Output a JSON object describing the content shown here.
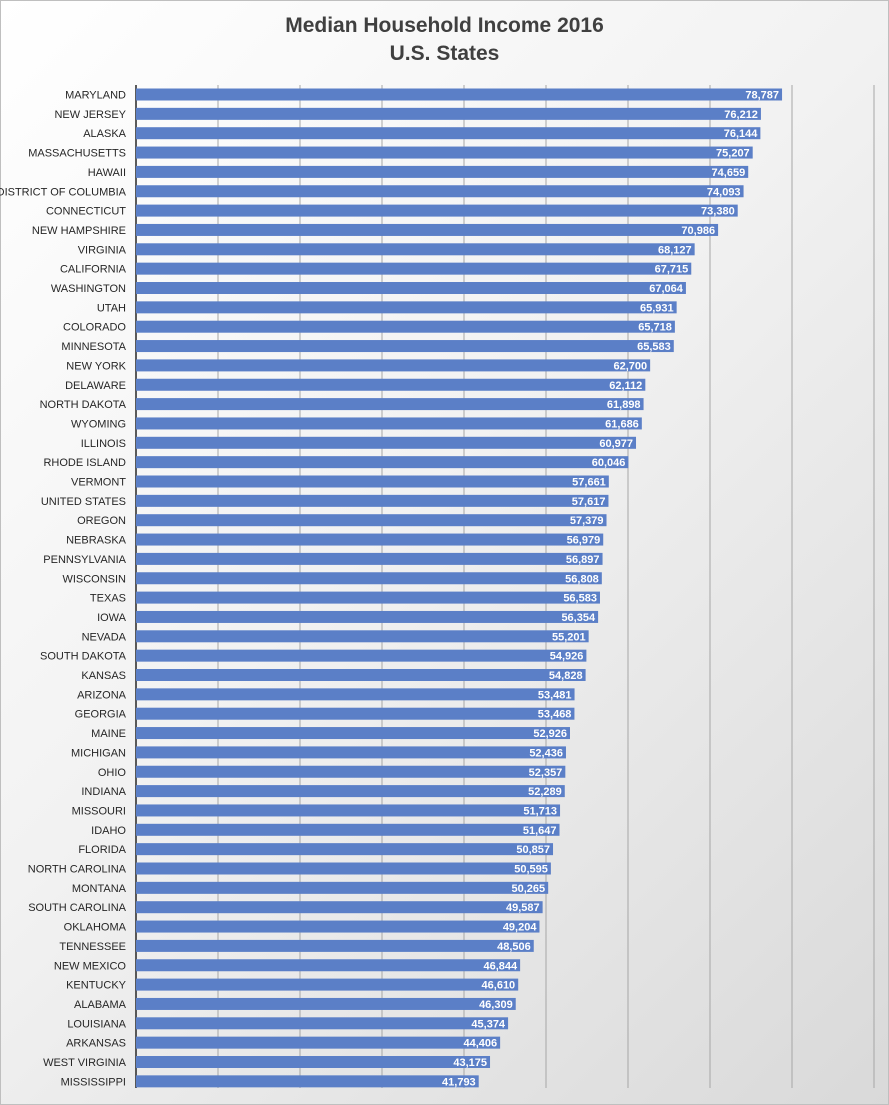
{
  "chart_data": {
    "type": "bar",
    "orientation": "horizontal",
    "title": "Median Household Income 2016",
    "subtitle": "U.S. States",
    "xlim": [
      0,
      90000
    ],
    "gridlines": true,
    "bar_color": "#5b7fc7",
    "label_color": "#ffffff",
    "categories": [
      "MARYLAND",
      "NEW JERSEY",
      "ALASKA",
      "MASSACHUSETTS",
      "HAWAII",
      "DISTRICT OF COLUMBIA",
      "CONNECTICUT",
      "NEW HAMPSHIRE",
      "VIRGINIA",
      "CALIFORNIA",
      "WASHINGTON",
      "UTAH",
      "COLORADO",
      "MINNESOTA",
      "NEW YORK",
      "DELAWARE",
      "NORTH DAKOTA",
      "WYOMING",
      "ILLINOIS",
      "RHODE ISLAND",
      "VERMONT",
      "UNITED STATES",
      "OREGON",
      "NEBRASKA",
      "PENNSYLVANIA",
      "WISCONSIN",
      "TEXAS",
      "IOWA",
      "NEVADA",
      "SOUTH DAKOTA",
      "KANSAS",
      "ARIZONA",
      "GEORGIA",
      "MAINE",
      "MICHIGAN",
      "OHIO",
      "INDIANA",
      "MISSOURI",
      "IDAHO",
      "FLORIDA",
      "NORTH CAROLINA",
      "MONTANA",
      "SOUTH CAROLINA",
      "OKLAHOMA",
      "TENNESSEE",
      "NEW MEXICO",
      "KENTUCKY",
      "ALABAMA",
      "LOUISIANA",
      "ARKANSAS",
      "WEST VIRGINIA",
      "MISSISSIPPI"
    ],
    "values": [
      78787,
      76212,
      76144,
      75207,
      74659,
      74093,
      73380,
      70986,
      68127,
      67715,
      67064,
      65931,
      65718,
      65583,
      62700,
      62112,
      61898,
      61686,
      60977,
      60046,
      57661,
      57617,
      57379,
      56979,
      56897,
      56808,
      56583,
      56354,
      55201,
      54926,
      54828,
      53481,
      53468,
      52926,
      52436,
      52357,
      52289,
      51713,
      51647,
      50857,
      50595,
      50265,
      49587,
      49204,
      48506,
      46844,
      46610,
      46309,
      45374,
      44406,
      43175,
      41793
    ],
    "value_labels": [
      "78,787",
      "76,212",
      "76,144",
      "75,207",
      "74,659",
      "74,093",
      "73,380",
      "70,986",
      "68,127",
      "67,715",
      "67,064",
      "65,931",
      "65,718",
      "65,583",
      "62,700",
      "62,112",
      "61,898",
      "61,686",
      "60,977",
      "60,046",
      "57,661",
      "57,617",
      "57,379",
      "56,979",
      "56,897",
      "56,808",
      "56,583",
      "56,354",
      "55,201",
      "54,926",
      "54,828",
      "53,481",
      "53,468",
      "52,926",
      "52,436",
      "52,357",
      "52,289",
      "51,713",
      "51,647",
      "50,857",
      "50,595",
      "50,265",
      "49,587",
      "49,204",
      "48,506",
      "46,844",
      "46,610",
      "46,309",
      "45,374",
      "44,406",
      "43,175",
      "41,793"
    ]
  }
}
